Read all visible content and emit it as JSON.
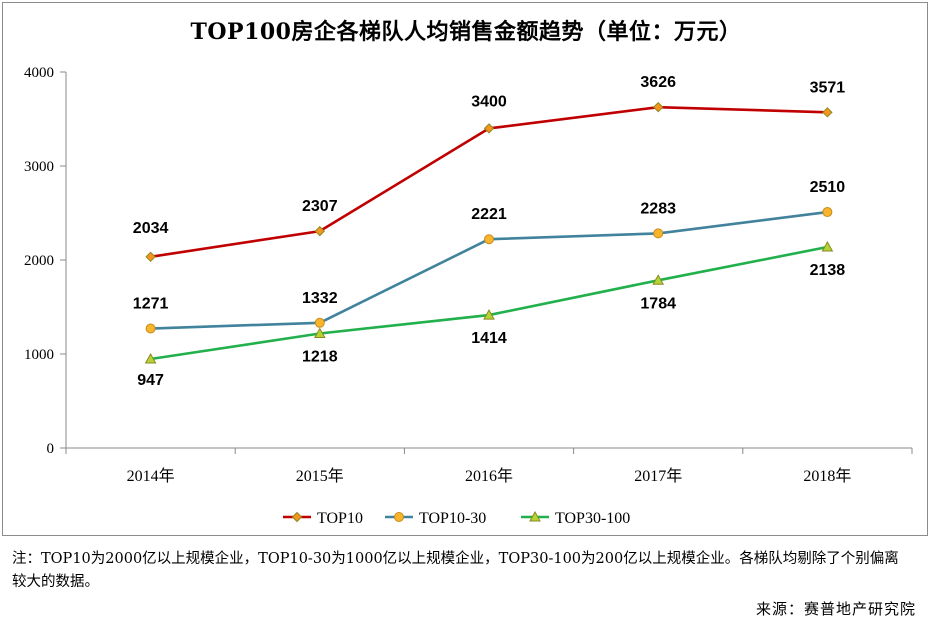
{
  "chart_data": {
    "type": "line",
    "title": "TOP100房企各梯队人均销售金额趋势（单位：万元）",
    "categories": [
      "2014年",
      "2015年",
      "2016年",
      "2017年",
      "2018年"
    ],
    "ylim": [
      0,
      4000
    ],
    "yticks": [
      "0",
      "1000",
      "2000",
      "3000",
      "4000"
    ],
    "xlabel": "",
    "ylabel": "",
    "grid": false,
    "legend_position": "bottom",
    "series": [
      {
        "name": "TOP10",
        "values": [
          2034,
          2307,
          3400,
          3626,
          3571
        ],
        "labels": [
          "2034",
          "2307",
          "3400",
          "3626",
          "3571"
        ],
        "color": "#c00000",
        "marker": "diamond",
        "marker_color": "#f7941d"
      },
      {
        "name": "TOP10-30",
        "values": [
          1271,
          1332,
          2221,
          2283,
          2510
        ],
        "labels": [
          "1271",
          "1332",
          "2221",
          "2283",
          "2510"
        ],
        "color": "#41829c",
        "marker": "circle",
        "marker_color": "#f7b52c"
      },
      {
        "name": "TOP30-100",
        "values": [
          947,
          1218,
          1414,
          1784,
          2138
        ],
        "labels": [
          "947",
          "1218",
          "1414",
          "1784",
          "2138"
        ],
        "color": "#21b04b",
        "marker": "triangle",
        "marker_color": "#b5d334"
      }
    ]
  },
  "footnote": "注：TOP10为2000亿以上规模企业，TOP10-30为1000亿以上规模企业，TOP30-100为200亿以上规模企业。各梯队均剔除了个别偏离较大的数据。",
  "source": "来源：赛普地产研究院"
}
